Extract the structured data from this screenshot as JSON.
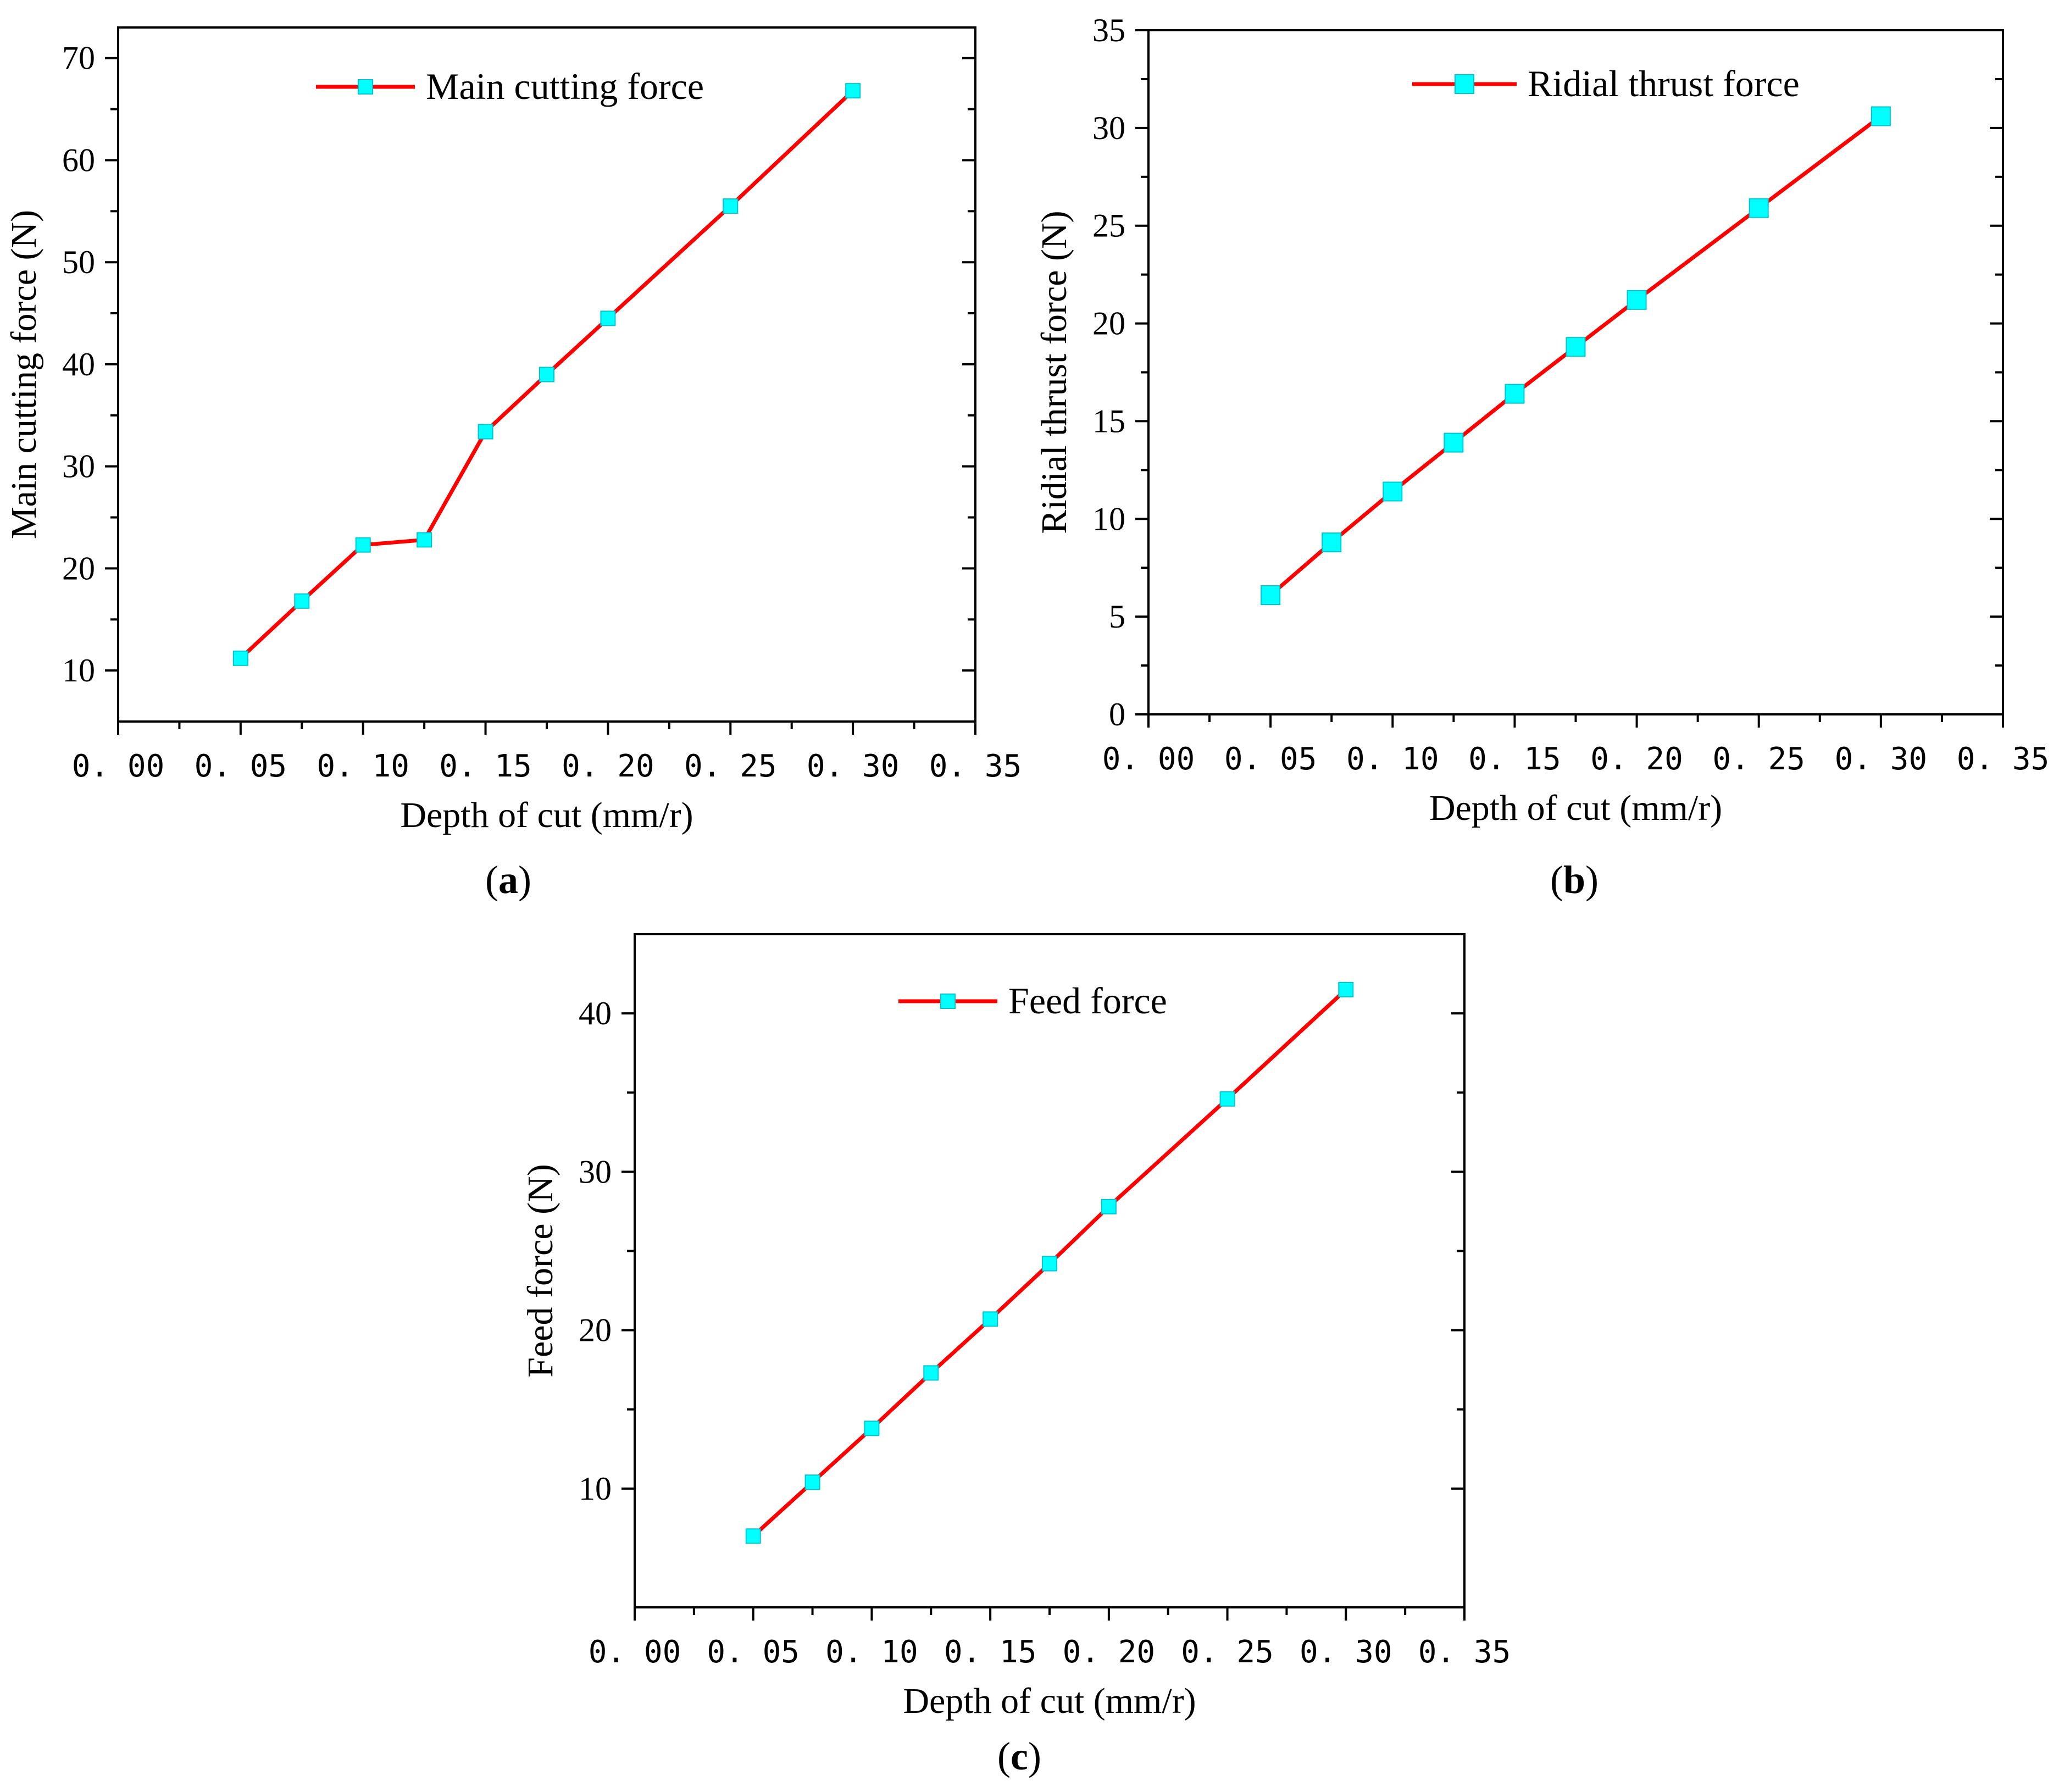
{
  "chart_data": [
    {
      "type": "line",
      "panel": "a",
      "panel_label": "a",
      "title": "",
      "xlabel": "Depth of cut (mm/r)",
      "ylabel": "Main cutting force (N)",
      "xlim": [
        0.0,
        0.35
      ],
      "ylim": [
        5,
        73
      ],
      "xticks": [
        0.0,
        0.05,
        0.1,
        0.15,
        0.2,
        0.25,
        0.3,
        0.35
      ],
      "xtick_labels": [
        "0. 00",
        "0. 05",
        "0. 10",
        "0. 15",
        "0. 20",
        "0. 25",
        "0. 30",
        "0. 35"
      ],
      "yticks": [
        10,
        20,
        30,
        40,
        50,
        60,
        70
      ],
      "ytick_labels": [
        "10",
        "20",
        "30",
        "40",
        "50",
        "60",
        "70"
      ],
      "legend": "top-center",
      "series": [
        {
          "name": "Main cutting force",
          "color": "#ff0000",
          "marker_color": "#00ffff",
          "marker_size": "small",
          "x": [
            0.05,
            0.075,
            0.1,
            0.125,
            0.15,
            0.175,
            0.2,
            0.25,
            0.3
          ],
          "y": [
            11.2,
            16.8,
            22.3,
            22.8,
            33.4,
            39.0,
            44.5,
            55.5,
            66.8
          ]
        }
      ]
    },
    {
      "type": "line",
      "panel": "b",
      "panel_label": "b",
      "title": "",
      "xlabel": "Depth of cut (mm/r)",
      "ylabel": "Ridial thrust force (N)",
      "xlim": [
        0.0,
        0.35
      ],
      "ylim": [
        0,
        35
      ],
      "xticks": [
        0.0,
        0.05,
        0.1,
        0.15,
        0.2,
        0.25,
        0.3,
        0.35
      ],
      "xtick_labels": [
        "0. 00",
        "0. 05",
        "0. 10",
        "0. 15",
        "0. 20",
        "0. 25",
        "0. 30",
        "0. 35"
      ],
      "yticks": [
        0,
        5,
        10,
        15,
        20,
        25,
        30,
        35
      ],
      "ytick_labels": [
        "0",
        "5",
        "10",
        "15",
        "20",
        "25",
        "30",
        "35"
      ],
      "legend": "top-center",
      "series": [
        {
          "name": "Ridial thrust force",
          "color": "#ff0000",
          "marker_color": "#00ffff",
          "marker_size": "large",
          "x": [
            0.05,
            0.075,
            0.1,
            0.125,
            0.15,
            0.175,
            0.2,
            0.25,
            0.3
          ],
          "y": [
            6.1,
            8.8,
            11.4,
            13.9,
            16.4,
            18.8,
            21.2,
            25.9,
            30.6
          ]
        }
      ]
    },
    {
      "type": "line",
      "panel": "c",
      "panel_label": "c",
      "title": "",
      "xlabel": "Depth of cut (mm/r)",
      "ylabel": "Feed force (N)",
      "xlim": [
        0.0,
        0.35
      ],
      "ylim": [
        2.5,
        45
      ],
      "xticks": [
        0.0,
        0.05,
        0.1,
        0.15,
        0.2,
        0.25,
        0.3,
        0.35
      ],
      "xtick_labels": [
        "0. 00",
        "0. 05",
        "0. 10",
        "0. 15",
        "0. 20",
        "0. 25",
        "0. 30",
        "0. 35"
      ],
      "yticks": [
        10,
        20,
        30,
        40
      ],
      "ytick_labels": [
        "10",
        "20",
        "30",
        "40"
      ],
      "legend": "top-center",
      "series": [
        {
          "name": "Feed force",
          "color": "#ff0000",
          "marker_color": "#00ffff",
          "marker_size": "small",
          "x": [
            0.05,
            0.075,
            0.1,
            0.125,
            0.15,
            0.175,
            0.2,
            0.25,
            0.3
          ],
          "y": [
            7.0,
            10.4,
            13.8,
            17.3,
            20.7,
            24.2,
            27.8,
            34.6,
            41.5
          ]
        }
      ]
    }
  ]
}
